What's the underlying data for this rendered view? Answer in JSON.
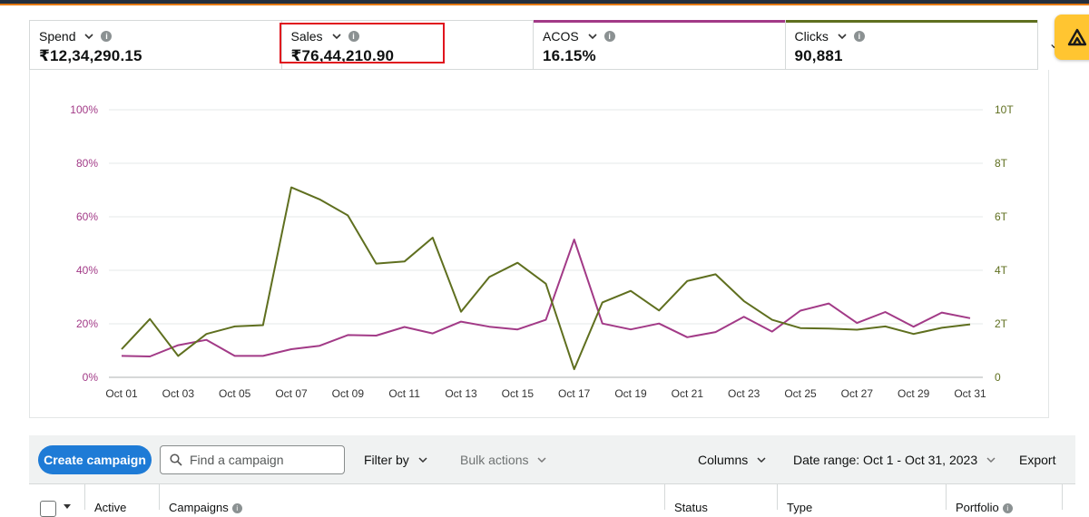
{
  "metrics": [
    {
      "label": "Spend",
      "value": "₹12,34,290.15",
      "accent": ""
    },
    {
      "label": "Sales",
      "value": "₹76,44,210.90",
      "accent": ""
    },
    {
      "label": "ACOS",
      "value": "16.15%",
      "accent": "#a23a87"
    },
    {
      "label": "Clicks",
      "value": "90,881",
      "accent": "#5f6f1f"
    }
  ],
  "colors": {
    "acos": "#a23a87",
    "clicks": "#5f6f1f",
    "highlight": "#e0141e",
    "primary_button": "#1e7bd6",
    "badge": "#ffc531"
  },
  "chart_data": {
    "type": "line",
    "x": [
      "Oct 01",
      "Oct 02",
      "Oct 03",
      "Oct 04",
      "Oct 05",
      "Oct 06",
      "Oct 07",
      "Oct 08",
      "Oct 09",
      "Oct 10",
      "Oct 11",
      "Oct 12",
      "Oct 13",
      "Oct 14",
      "Oct 15",
      "Oct 16",
      "Oct 17",
      "Oct 18",
      "Oct 19",
      "Oct 20",
      "Oct 21",
      "Oct 22",
      "Oct 23",
      "Oct 24",
      "Oct 25",
      "Oct 26",
      "Oct 27",
      "Oct 28",
      "Oct 29",
      "Oct 30",
      "Oct 31"
    ],
    "x_tick_labels": [
      "Oct 01",
      "Oct 03",
      "Oct 05",
      "Oct 07",
      "Oct 09",
      "Oct 11",
      "Oct 13",
      "Oct 15",
      "Oct 17",
      "Oct 19",
      "Oct 21",
      "Oct 23",
      "Oct 25",
      "Oct 27",
      "Oct 29",
      "Oct 31"
    ],
    "y_left_ticks": [
      "0%",
      "20%",
      "40%",
      "60%",
      "80%",
      "100%"
    ],
    "y_right_ticks": [
      "0",
      "2T",
      "4T",
      "6T",
      "8T",
      "10T"
    ],
    "y_left_range": [
      0,
      100
    ],
    "y_right_range": [
      0,
      10
    ],
    "grid": true,
    "series": [
      {
        "axis": "left",
        "color": "#a23a87",
        "values": [
          8,
          7.8,
          12,
          14,
          8,
          8,
          10.5,
          11.8,
          15.8,
          15.6,
          18.8,
          16.4,
          20.8,
          18.9,
          17.9,
          21.5,
          51.5,
          20.1,
          17.9,
          20.1,
          15,
          16.9,
          22.6,
          17.1,
          24.9,
          27.6,
          20.3,
          24.4,
          18.9,
          24.2,
          22.1
        ]
      },
      {
        "axis": "right",
        "color": "#5f6f1f",
        "values": [
          1.05,
          2.18,
          0.8,
          1.62,
          1.9,
          1.95,
          7.1,
          6.65,
          6.05,
          4.25,
          4.33,
          5.22,
          2.45,
          3.75,
          4.28,
          3.5,
          0.3,
          2.8,
          3.23,
          2.5,
          3.6,
          3.85,
          2.85,
          2.15,
          1.84,
          1.82,
          1.78,
          1.9,
          1.62,
          1.85,
          1.98
        ]
      }
    ]
  },
  "toolbar": {
    "create_label": "Create campaign",
    "search_placeholder": "Find a campaign",
    "filter_label": "Filter by",
    "bulk_label": "Bulk actions",
    "columns_label": "Columns",
    "date_range_label": "Date range: Oct 1 - Oct 31, 2023",
    "export_label": "Export"
  },
  "table": {
    "columns": [
      "Active",
      "Campaigns",
      "Status",
      "Type",
      "Portfolio"
    ]
  }
}
